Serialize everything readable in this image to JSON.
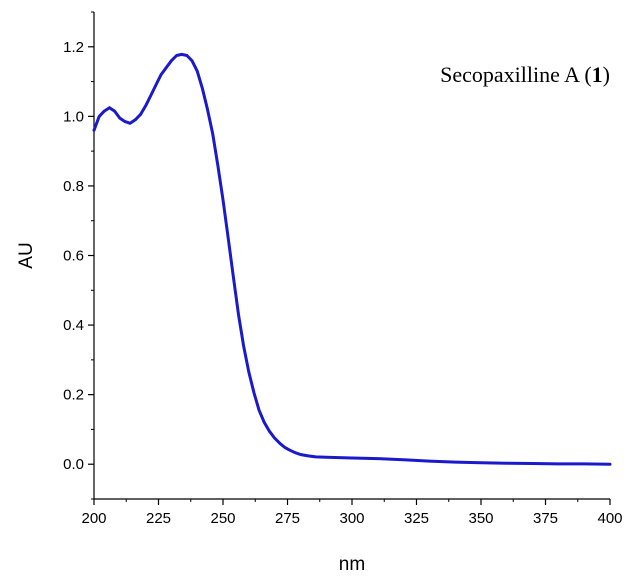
{
  "chart_data": {
    "type": "line",
    "title": "",
    "xlabel": "nm",
    "ylabel": "AU",
    "xlim": [
      200,
      400
    ],
    "ylim": [
      -0.1,
      1.3
    ],
    "grid": false,
    "x_ticks": [
      "200",
      "225",
      "250",
      "275",
      "300",
      "325",
      "350",
      "375",
      "400"
    ],
    "y_ticks": [
      "0.0",
      "0.2",
      "0.4",
      "0.6",
      "0.8",
      "1.0",
      "1.2"
    ],
    "annotation": {
      "prefix": "Secopaxilline A (",
      "bold": "1",
      "suffix": ")"
    },
    "line_color": "#1a1acc",
    "series": [
      {
        "x": [
          200,
          202,
          204,
          206,
          208,
          210,
          212,
          214,
          216,
          218,
          220,
          222,
          224,
          226,
          228,
          230,
          232,
          234,
          236,
          238,
          240,
          242,
          244,
          246,
          248,
          250,
          252,
          254,
          256,
          258,
          260,
          262,
          264,
          266,
          268,
          270,
          272,
          274,
          276,
          278,
          280,
          283,
          286,
          290,
          295,
          300,
          310,
          320,
          330,
          340,
          350,
          360,
          370,
          380,
          390,
          400
        ],
        "y": [
          0.96,
          1.0,
          1.015,
          1.025,
          1.015,
          0.995,
          0.985,
          0.98,
          0.99,
          1.005,
          1.03,
          1.06,
          1.09,
          1.12,
          1.14,
          1.16,
          1.175,
          1.178,
          1.175,
          1.16,
          1.13,
          1.08,
          1.02,
          0.95,
          0.86,
          0.76,
          0.65,
          0.54,
          0.43,
          0.34,
          0.265,
          0.205,
          0.155,
          0.12,
          0.095,
          0.075,
          0.06,
          0.048,
          0.04,
          0.033,
          0.028,
          0.024,
          0.021,
          0.02,
          0.019,
          0.018,
          0.016,
          0.013,
          0.009,
          0.006,
          0.004,
          0.003,
          0.002,
          0.001,
          0.001,
          0.0
        ]
      }
    ]
  }
}
